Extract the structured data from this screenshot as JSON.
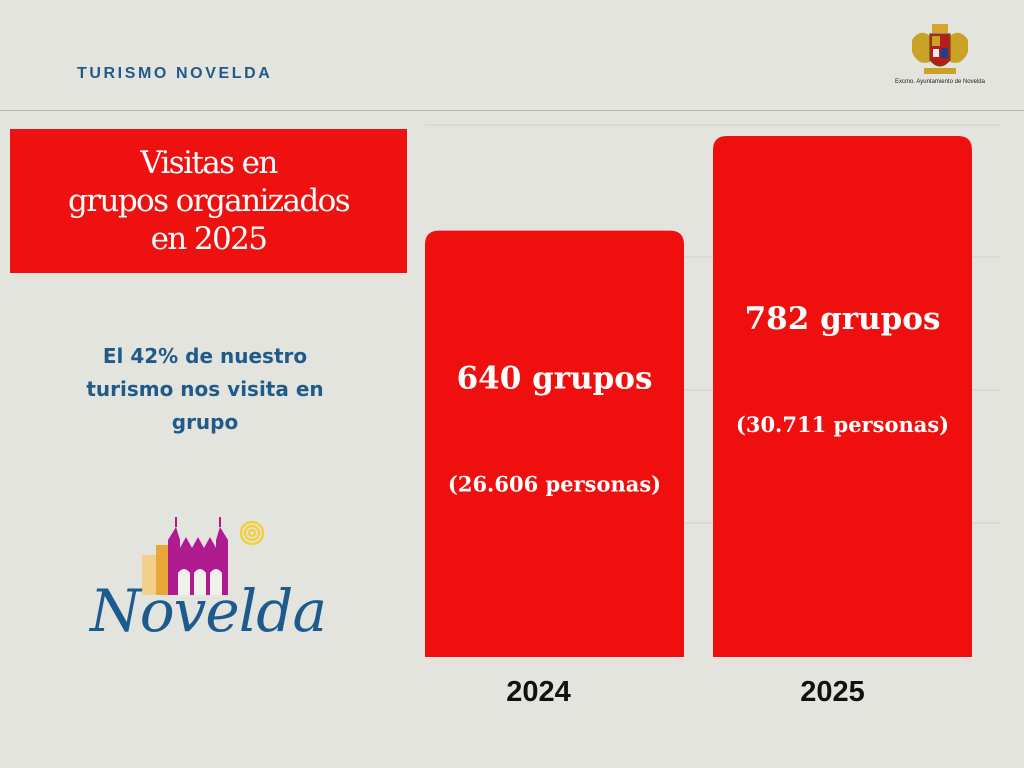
{
  "header": {
    "brand": "TURISMO NOVELDA",
    "crest_caption": "Excmo. Ayuntamiento de Novelda"
  },
  "title": {
    "line1": "Visitas en",
    "line2": "grupos organizados",
    "line3": "en 2025"
  },
  "subtitle": "El 42% de nuestro turismo nos visita en grupo",
  "logo": {
    "wordmark": "Novelda"
  },
  "colors": {
    "bar": "#ef0f0e",
    "title_bg": "#ee1110",
    "accent_blue": "#1f5a8a",
    "background": "#e4e4df"
  },
  "chart_data": {
    "type": "bar",
    "categories": [
      "2024",
      "2025"
    ],
    "values": [
      640,
      782
    ],
    "labels_main": [
      "640 grupos",
      "782 grupos"
    ],
    "labels_sub": [
      "(26.606 personas)",
      "(30.711 personas)"
    ],
    "ylim": [
      0,
      800
    ],
    "grid": true
  }
}
